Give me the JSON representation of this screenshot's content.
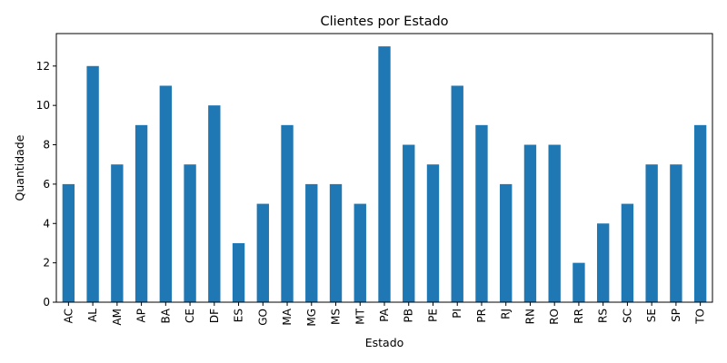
{
  "chart_data": {
    "type": "bar",
    "title": "Clientes por Estado",
    "xlabel": "Estado",
    "ylabel": "Quantidade",
    "categories": [
      "AC",
      "AL",
      "AM",
      "AP",
      "BA",
      "CE",
      "DF",
      "ES",
      "GO",
      "MA",
      "MG",
      "MS",
      "MT",
      "PA",
      "PB",
      "PE",
      "PI",
      "PR",
      "RJ",
      "RN",
      "RO",
      "RR",
      "RS",
      "SC",
      "SE",
      "SP",
      "TO"
    ],
    "values": [
      6,
      12,
      7,
      9,
      11,
      7,
      10,
      3,
      5,
      9,
      6,
      6,
      5,
      13,
      8,
      7,
      11,
      9,
      6,
      8,
      8,
      2,
      4,
      5,
      7,
      7,
      9
    ],
    "ylim": [
      0,
      13.65
    ],
    "yticks": [
      0,
      2,
      4,
      6,
      8,
      10,
      12
    ],
    "grid": false,
    "bar_color": "#1f77b4"
  }
}
